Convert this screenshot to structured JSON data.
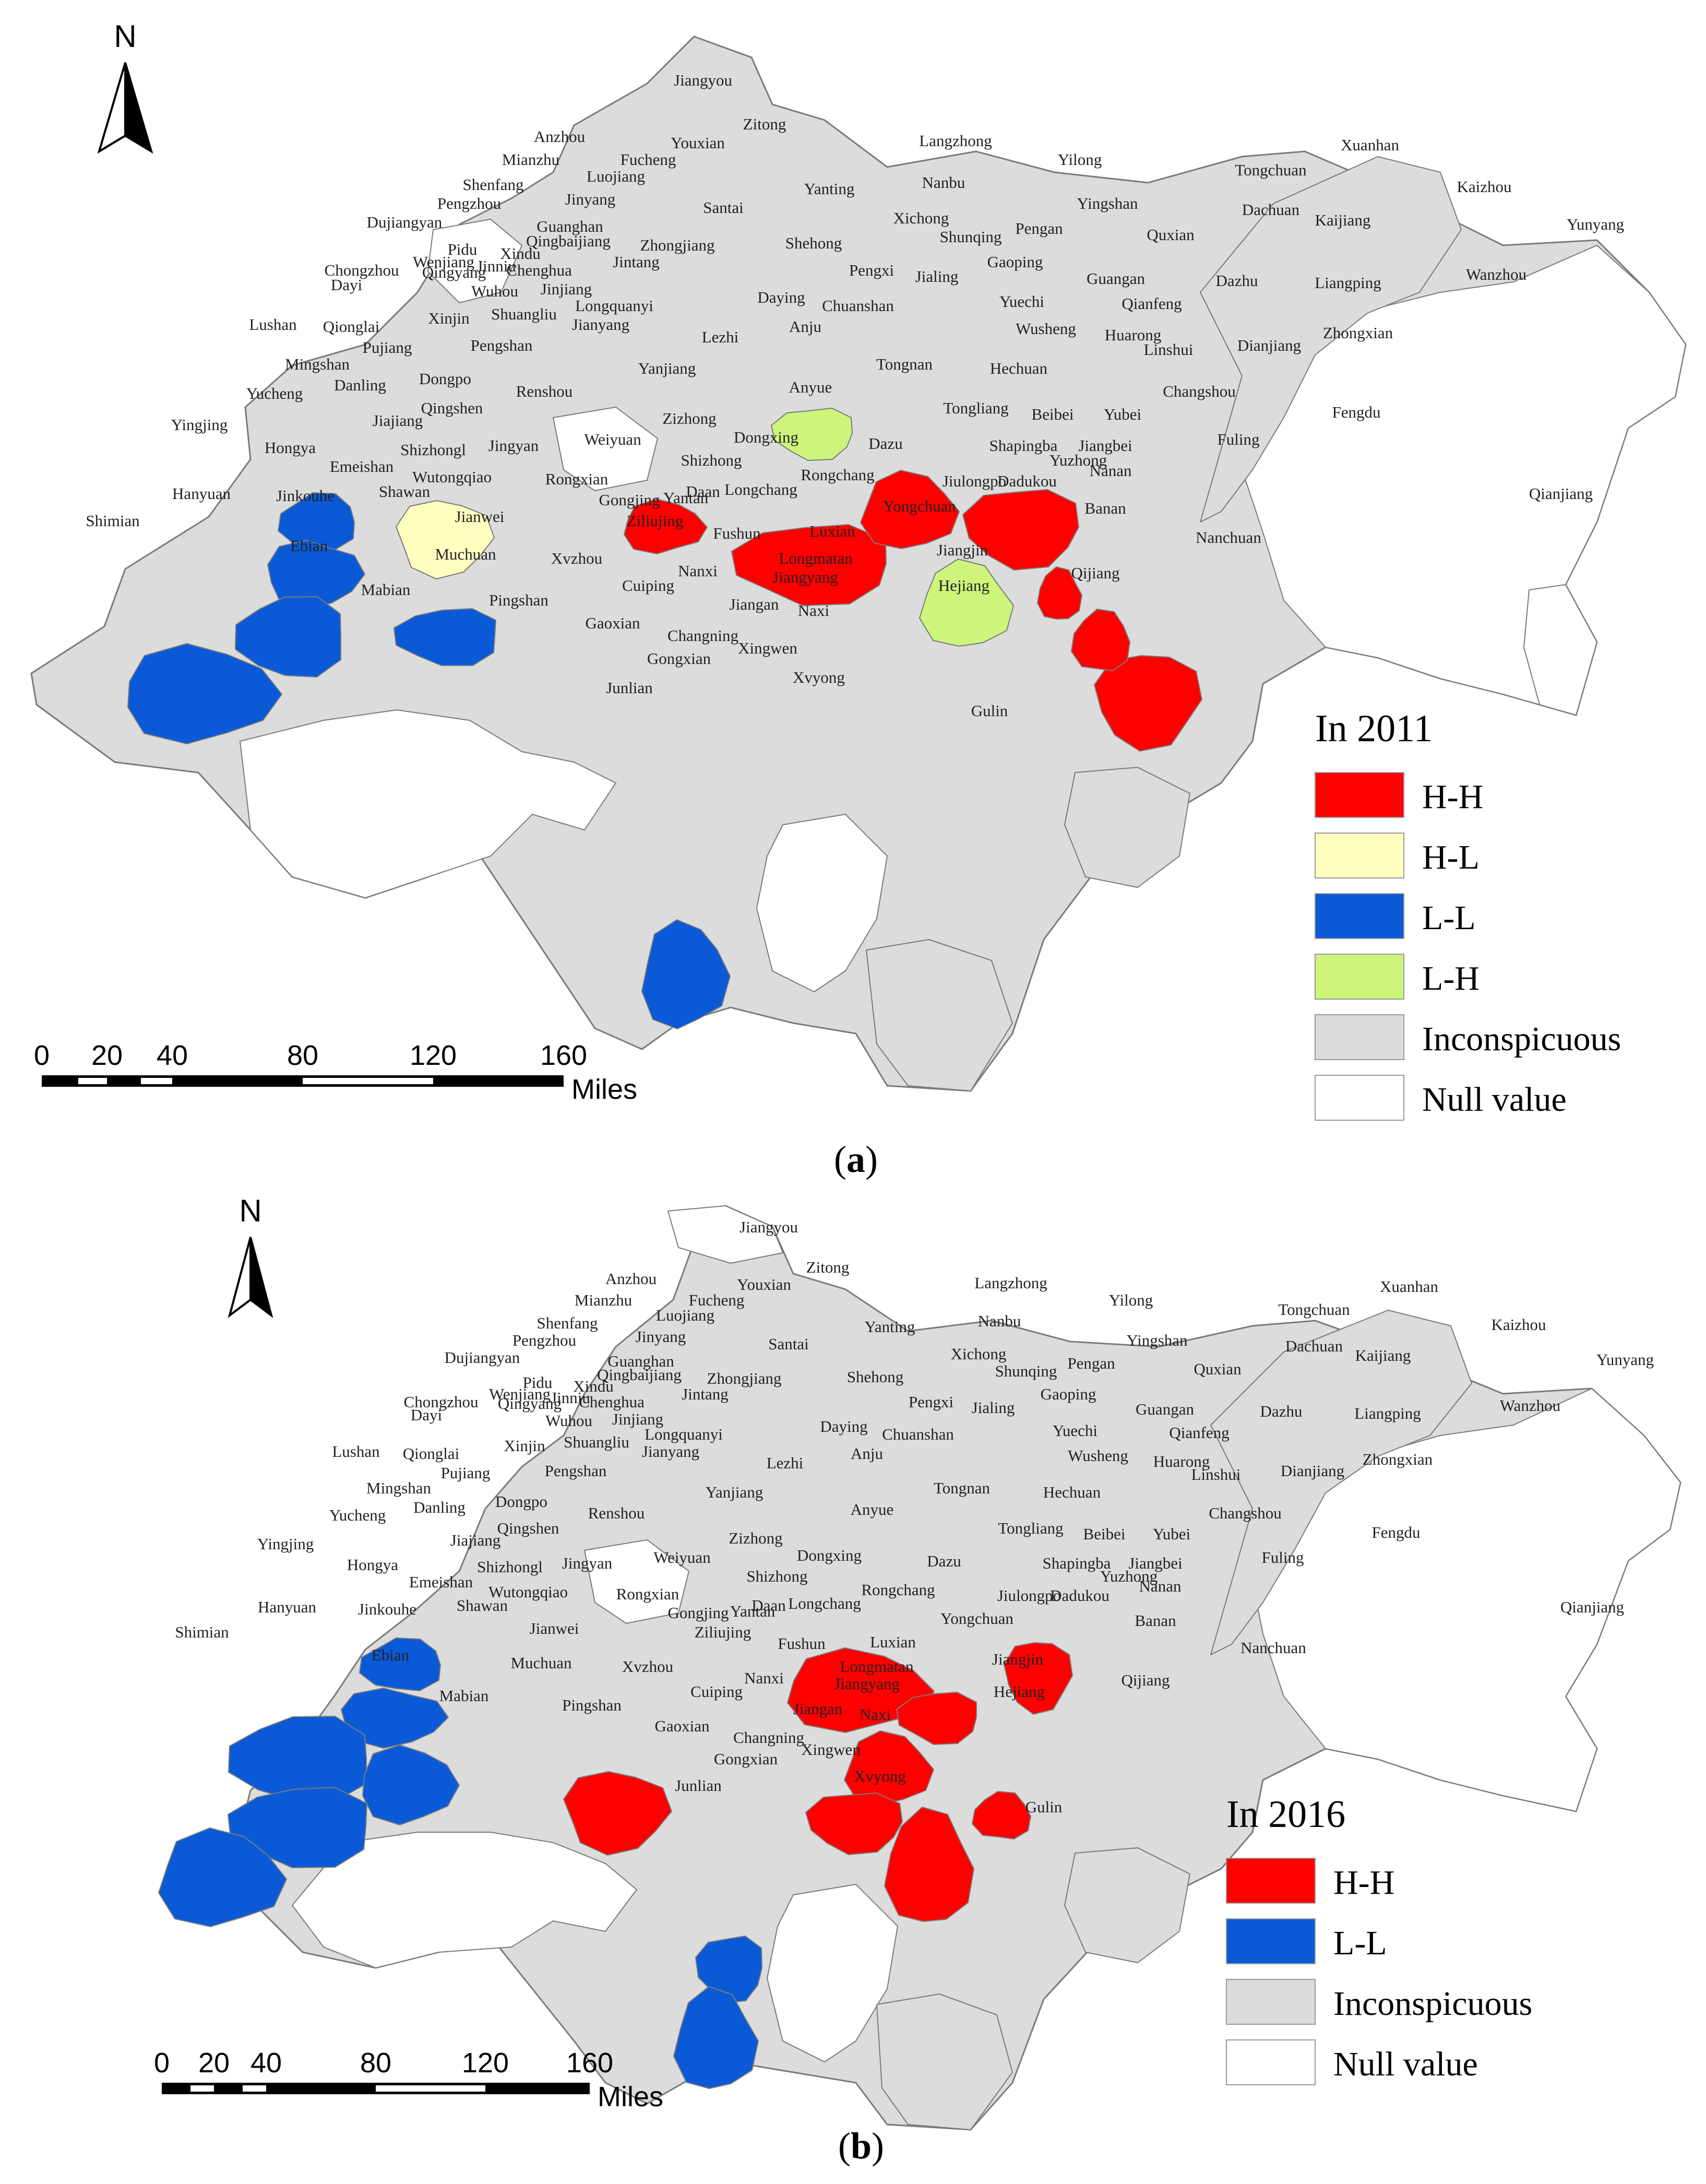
{
  "colors": {
    "HH": "#ff0000",
    "HL": "#ffffc0",
    "LL": "#0a5ad7",
    "LH": "#cdf57a",
    "inconspicuous": "#dcdcdc",
    "null": "#ffffff",
    "border": "#7a7a7a"
  },
  "panels": [
    {
      "id": "a",
      "caption": "a",
      "north": "N",
      "scale": {
        "ticks": [
          "0",
          "20",
          "40",
          "80",
          "120",
          "160"
        ],
        "unit": "Miles"
      },
      "legend": {
        "title": "In 2011",
        "items": [
          {
            "label": "H-H",
            "cls": "HH"
          },
          {
            "label": "H-L",
            "cls": "HL"
          },
          {
            "label": "L-L",
            "cls": "LL"
          },
          {
            "label": "L-H",
            "cls": "LH"
          },
          {
            "label": "Inconspicuous",
            "cls": "inconspicuous"
          },
          {
            "label": "Null value",
            "cls": "null"
          }
        ]
      },
      "highlighted": {
        "HH": [
          "Yanjiang",
          "Anyue",
          "Tongnan",
          "Hechuan",
          "Beibei",
          "Banan",
          "Yubei"
        ],
        "HL": [
          "Dongpo"
        ],
        "LL": [
          "Mingshan",
          "Yucheng",
          "Hongya",
          "Hanyuan",
          "Shizhongl",
          "Gongxian"
        ],
        "LH": [
          "Daying",
          "Tongliang"
        ]
      },
      "places": [
        "Jiangyou",
        "Zitong",
        "Anzhou",
        "Youxian",
        "Langzhong",
        "Xuanhan",
        "Mianzhu",
        "Fucheng",
        "Yilong",
        "Tongchuan",
        "Kaizhou",
        "Shenfang",
        "Luojiang",
        "Yanting",
        "Nanbu",
        "Pengzhou",
        "Jinyang",
        "Santai",
        "Yingshan",
        "Dachuan",
        "Yunyang",
        "Xichong",
        "Kaijiang",
        "Dujiangyan",
        "Guanghan",
        "Shehong",
        "Shunqing",
        "Pengan",
        "Quxian",
        "Qingbaijiang",
        "Zhongjiang",
        "Pidu",
        "Xindu",
        "Wenjiang",
        "Jinniu",
        "Chenghua",
        "Jintang",
        "Gaoping",
        "Chongzhou",
        "Qingyang",
        "Pengxi",
        "Jialing",
        "Wanzhou",
        "Dayi",
        "Wuhou",
        "Jinjiang",
        "Guangan",
        "Dazhu",
        "Liangping",
        "Longquanyi",
        "Daying",
        "Xinjin",
        "Shuangliu",
        "Chuanshan",
        "Yuechi",
        "Qianfeng",
        "Lushan",
        "Qionglai",
        "Jianyang",
        "Anju",
        "Wusheng",
        "Huarong",
        "Zhongxian",
        "Pujiang",
        "Pengshan",
        "Lezhi",
        "Dianjiang",
        "Linshui",
        "Mingshan",
        "Yanjiang",
        "Tongnan",
        "Hechuan",
        "Dongpo",
        "Danling",
        "Renshou",
        "Changshou",
        "Yucheng",
        "Anyue",
        "Qingshen",
        "Tongliang",
        "Fengdu",
        "Beibei",
        "Yubei",
        "Yingjing",
        "Jiajiang",
        "Zizhong",
        "Jingyan",
        "Hongya",
        "Shizhongl",
        "Weiyuan",
        "Dongxing",
        "Dazu",
        "Shapingba",
        "Jiangbei",
        "Fuling",
        "Emeishan",
        "Yuzhong",
        "Nanan",
        "Wutongqiao",
        "Rongxian",
        "Shizhong",
        "Rongchang",
        "Jiulongpo",
        "Dadukou",
        "Hanyuan",
        "Jinkouhe",
        "Shawan",
        "Gongjing",
        "Yantan",
        "Longchang",
        "Banan",
        "Daan",
        "Qianjiang",
        "Shimian",
        "Jianwei",
        "Ziliujing",
        "Yongchuan",
        "Fushun",
        "Nanchuan",
        "Ebian",
        "Luxian",
        "Muchuan",
        "Xvzhou",
        "Jiangjin",
        "Longmatan",
        "Nanxi",
        "Jiangyang",
        "Qijiang",
        "Mabian",
        "Cuiping",
        "Hejiang",
        "Pingshan",
        "Jiangan",
        "Naxi",
        "Gaoxian",
        "Changning",
        "Gongxian",
        "Xingwen",
        "Xvyong",
        "Junlian",
        "Gulin"
      ]
    },
    {
      "id": "b",
      "caption": "b",
      "north": "N",
      "scale": {
        "ticks": [
          "0",
          "20",
          "40",
          "80",
          "120",
          "160"
        ],
        "unit": "Miles"
      },
      "legend": {
        "title": "In 2016",
        "items": [
          {
            "label": "H-H",
            "cls": "HH"
          },
          {
            "label": "L-L",
            "cls": "LL"
          },
          {
            "label": "Inconspicuous",
            "cls": "inconspicuous"
          },
          {
            "label": "Null value",
            "cls": "null"
          }
        ]
      },
      "highlighted": {
        "HH": [
          "Anyue",
          "Tongliang",
          "Dazu",
          "Rongchang",
          "Yongchuan",
          "Beibei",
          "Jiulongpo",
          "Rongxian"
        ],
        "LL": [
          "Mingshan",
          "Yucheng",
          "Yingjing",
          "Hongya",
          "Hanyuan",
          "Shimian",
          "Changning",
          "Gongxian"
        ]
      },
      "places": [
        "Jiangyou",
        "Zitong",
        "Anzhou",
        "Youxian",
        "Langzhong",
        "Xuanhan",
        "Mianzhu",
        "Fucheng",
        "Yilong",
        "Tongchuan",
        "Kaizhou",
        "Shenfang",
        "Luojiang",
        "Yanting",
        "Nanbu",
        "Pengzhou",
        "Jinyang",
        "Santai",
        "Yingshan",
        "Dachuan",
        "Yunyang",
        "Xichong",
        "Kaijiang",
        "Dujiangyan",
        "Guanghan",
        "Shehong",
        "Shunqing",
        "Pengan",
        "Quxian",
        "Qingbaijiang",
        "Zhongjiang",
        "Pidu",
        "Xindu",
        "Wenjiang",
        "Jinniu",
        "Chenghua",
        "Jintang",
        "Gaoping",
        "Chongzhou",
        "Qingyang",
        "Pengxi",
        "Jialing",
        "Wanzhou",
        "Dayi",
        "Wuhou",
        "Jinjiang",
        "Guangan",
        "Dazhu",
        "Liangping",
        "Longquanyi",
        "Daying",
        "Xinjin",
        "Shuangliu",
        "Chuanshan",
        "Yuechi",
        "Qianfeng",
        "Lushan",
        "Qionglai",
        "Jianyang",
        "Anju",
        "Wusheng",
        "Huarong",
        "Zhongxian",
        "Pujiang",
        "Pengshan",
        "Lezhi",
        "Dianjiang",
        "Linshui",
        "Mingshan",
        "Yanjiang",
        "Tongnan",
        "Hechuan",
        "Dongpo",
        "Danling",
        "Renshou",
        "Changshou",
        "Yucheng",
        "Anyue",
        "Qingshen",
        "Tongliang",
        "Fengdu",
        "Beibei",
        "Yubei",
        "Yingjing",
        "Jiajiang",
        "Zizhong",
        "Jingyan",
        "Hongya",
        "Shizhongl",
        "Weiyuan",
        "Dongxing",
        "Dazu",
        "Shapingba",
        "Jiangbei",
        "Fuling",
        "Emeishan",
        "Yuzhong",
        "Nanan",
        "Wutongqiao",
        "Rongxian",
        "Shizhong",
        "Rongchang",
        "Jiulongpo",
        "Dadukou",
        "Hanyuan",
        "Jinkouhe",
        "Shawan",
        "Gongjing",
        "Yantan",
        "Longchang",
        "Banan",
        "Daan",
        "Qianjiang",
        "Shimian",
        "Jianwei",
        "Ziliujing",
        "Yongchuan",
        "Fushun",
        "Nanchuan",
        "Ebian",
        "Luxian",
        "Muchuan",
        "Xvzhou",
        "Jiangjin",
        "Longmatan",
        "Nanxi",
        "Jiangyang",
        "Qijiang",
        "Mabian",
        "Cuiping",
        "Hejiang",
        "Pingshan",
        "Jiangan",
        "Naxi",
        "Gaoxian",
        "Changning",
        "Gongxian",
        "Xingwen",
        "Xvyong",
        "Junlian",
        "Gulin"
      ]
    }
  ]
}
